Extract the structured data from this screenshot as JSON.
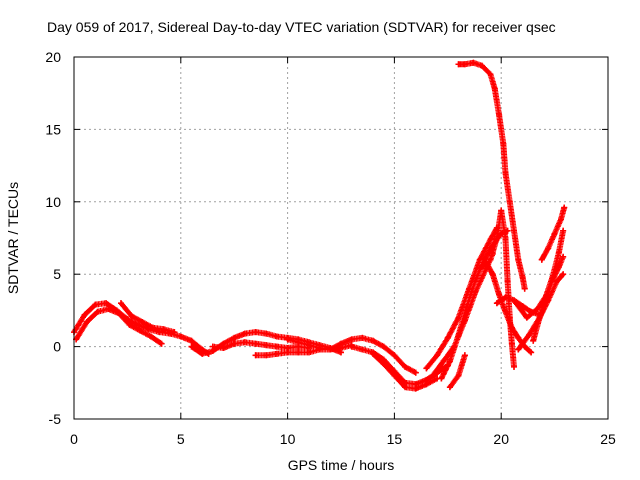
{
  "chart_data": {
    "type": "scatter",
    "title": "Day 059 of 2017, Sidereal Day-to-day VTEC variation (SDTVAR) for receiver qsec",
    "xlabel": "GPS time / hours",
    "ylabel": "SDTVAR / TECUs",
    "xlim": [
      0,
      25
    ],
    "ylim": [
      -5,
      20
    ],
    "xticks": [
      "0",
      "5",
      "10",
      "15",
      "20",
      "25"
    ],
    "yticks": [
      "-5",
      "0",
      "5",
      "10",
      "15",
      "20"
    ],
    "grid": true,
    "marker": "plus",
    "color": "#ff0000",
    "series": [
      {
        "name": "track-1",
        "points": [
          [
            0,
            1.0
          ],
          [
            0.5,
            2.2
          ],
          [
            1.0,
            2.9
          ],
          [
            1.5,
            3.0
          ],
          [
            2.0,
            2.5
          ],
          [
            2.5,
            1.9
          ],
          [
            3.0,
            1.5
          ],
          [
            3.5,
            1.2
          ],
          [
            4.0,
            1.0
          ],
          [
            4.5,
            0.9
          ],
          [
            5.0,
            0.7
          ],
          [
            5.5,
            0.4
          ],
          [
            6.0,
            -0.2
          ],
          [
            6.3,
            -0.5
          ]
        ]
      },
      {
        "name": "track-2",
        "points": [
          [
            0.1,
            0.5
          ],
          [
            0.6,
            1.7
          ],
          [
            1.1,
            2.4
          ],
          [
            1.6,
            2.6
          ],
          [
            2.1,
            2.3
          ],
          [
            2.6,
            1.5
          ],
          [
            3.1,
            1.1
          ],
          [
            3.6,
            0.7
          ],
          [
            4.1,
            0.2
          ]
        ]
      },
      {
        "name": "track-3",
        "points": [
          [
            2.2,
            3.0
          ],
          [
            2.7,
            2.1
          ],
          [
            3.2,
            1.7
          ],
          [
            3.7,
            1.3
          ],
          [
            4.2,
            1.2
          ],
          [
            4.7,
            1.0
          ]
        ]
      },
      {
        "name": "track-4",
        "points": [
          [
            5.5,
            0.0
          ],
          [
            6.0,
            -0.5
          ],
          [
            6.5,
            -0.3
          ],
          [
            7.0,
            0.2
          ],
          [
            7.5,
            0.6
          ],
          [
            8.0,
            0.9
          ],
          [
            8.5,
            1.0
          ],
          [
            9.0,
            0.9
          ],
          [
            9.5,
            0.7
          ],
          [
            10.0,
            0.6
          ],
          [
            10.5,
            0.5
          ],
          [
            11.0,
            0.3
          ],
          [
            11.5,
            0.1
          ],
          [
            12.0,
            -0.1
          ],
          [
            12.5,
            -0.4
          ]
        ]
      },
      {
        "name": "track-5",
        "points": [
          [
            6.5,
            0.0
          ],
          [
            7.0,
            -0.1
          ],
          [
            7.5,
            0.2
          ],
          [
            8.0,
            0.3
          ],
          [
            8.5,
            0.2
          ],
          [
            9.0,
            0.1
          ],
          [
            9.5,
            0.0
          ],
          [
            10.0,
            -0.1
          ],
          [
            10.5,
            0.0
          ],
          [
            11.0,
            -0.1
          ]
        ]
      },
      {
        "name": "track-6",
        "points": [
          [
            8.5,
            -0.6
          ],
          [
            9.0,
            -0.6
          ],
          [
            9.5,
            -0.5
          ],
          [
            10.0,
            -0.4
          ],
          [
            10.5,
            -0.4
          ],
          [
            11.0,
            -0.4
          ],
          [
            11.5,
            -0.2
          ],
          [
            12.0,
            -0.2
          ],
          [
            12.5,
            -0.1
          ],
          [
            13.0,
            0.1
          ]
        ]
      },
      {
        "name": "track-7",
        "points": [
          [
            10.0,
            0.5
          ],
          [
            10.5,
            0.3
          ],
          [
            11.0,
            0.1
          ],
          [
            11.5,
            -0.1
          ],
          [
            12.0,
            -0.2
          ],
          [
            12.5,
            0.2
          ],
          [
            13.0,
            0.5
          ],
          [
            13.5,
            0.6
          ],
          [
            14.0,
            0.4
          ],
          [
            14.5,
            0.0
          ],
          [
            15.0,
            -0.6
          ],
          [
            15.5,
            -1.4
          ],
          [
            16.0,
            -1.8
          ]
        ]
      },
      {
        "name": "track-8",
        "points": [
          [
            13.0,
            0.0
          ],
          [
            13.5,
            -0.2
          ],
          [
            14.0,
            -0.4
          ],
          [
            14.5,
            -0.9
          ],
          [
            15.0,
            -1.7
          ],
          [
            15.5,
            -2.5
          ],
          [
            16.0,
            -2.6
          ],
          [
            16.5,
            -2.3
          ],
          [
            17.0,
            -1.8
          ],
          [
            17.5,
            -1.3
          ]
        ]
      },
      {
        "name": "track-9",
        "points": [
          [
            14.0,
            -0.5
          ],
          [
            14.5,
            -1.2
          ],
          [
            15.0,
            -2.0
          ],
          [
            15.5,
            -2.8
          ],
          [
            16.0,
            -2.9
          ],
          [
            16.5,
            -2.6
          ],
          [
            17.0,
            -2.2
          ]
        ]
      },
      {
        "name": "track-10",
        "points": [
          [
            16.5,
            -1.5
          ],
          [
            17.0,
            -0.6
          ],
          [
            17.5,
            0.6
          ],
          [
            18.0,
            2.0
          ],
          [
            18.5,
            4.0
          ],
          [
            19.0,
            6.0
          ],
          [
            19.5,
            7.4
          ],
          [
            19.8,
            8.2
          ]
        ]
      },
      {
        "name": "track-11",
        "points": [
          [
            16.8,
            -2.0
          ],
          [
            17.3,
            -1.0
          ],
          [
            17.8,
            0.0
          ],
          [
            18.3,
            1.8
          ],
          [
            18.8,
            3.8
          ],
          [
            19.3,
            5.4
          ],
          [
            19.6,
            6.4
          ]
        ]
      },
      {
        "name": "track-12",
        "points": [
          [
            17.2,
            -2.2
          ],
          [
            17.6,
            -1.0
          ],
          [
            18.0,
            0.8
          ],
          [
            18.4,
            2.8
          ],
          [
            18.8,
            4.6
          ],
          [
            19.2,
            6.0
          ],
          [
            19.6,
            7.0
          ],
          [
            20.0,
            7.8
          ],
          [
            20.3,
            8.0
          ]
        ]
      },
      {
        "name": "track-13",
        "points": [
          [
            17.6,
            -2.8
          ],
          [
            18.0,
            -2.0
          ],
          [
            18.3,
            -0.6
          ]
        ]
      },
      {
        "name": "track-14",
        "points": [
          [
            18.0,
            19.5
          ],
          [
            18.3,
            19.5
          ],
          [
            18.7,
            19.6
          ],
          [
            19.1,
            19.4
          ],
          [
            19.5,
            18.8
          ],
          [
            19.7,
            17.8
          ],
          [
            19.9,
            16.0
          ],
          [
            20.1,
            14.0
          ],
          [
            20.2,
            12.0
          ],
          [
            20.4,
            10.0
          ],
          [
            20.6,
            8.0
          ],
          [
            20.8,
            6.0
          ],
          [
            21.0,
            4.8
          ],
          [
            21.1,
            4.0
          ]
        ]
      },
      {
        "name": "track-15",
        "points": [
          [
            19.0,
            5.4
          ],
          [
            19.3,
            5.8
          ],
          [
            19.6,
            5.0
          ],
          [
            19.9,
            3.6
          ],
          [
            20.2,
            2.4
          ],
          [
            20.5,
            1.3
          ],
          [
            20.8,
            0.6
          ],
          [
            21.1,
            0.0
          ],
          [
            21.4,
            -0.4
          ]
        ]
      },
      {
        "name": "track-16",
        "points": [
          [
            19.5,
            6.0
          ],
          [
            19.8,
            7.5
          ],
          [
            20.0,
            9.4
          ],
          [
            20.2,
            7.5
          ],
          [
            20.3,
            4.5
          ],
          [
            20.4,
            2.0
          ],
          [
            20.5,
            0.2
          ],
          [
            20.6,
            -1.4
          ]
        ]
      },
      {
        "name": "track-17",
        "points": [
          [
            19.8,
            3.0
          ],
          [
            20.2,
            3.4
          ],
          [
            20.6,
            3.2
          ],
          [
            21.0,
            2.8
          ],
          [
            21.4,
            2.4
          ],
          [
            21.8,
            2.2
          ]
        ]
      },
      {
        "name": "track-18",
        "points": [
          [
            20.7,
            3.0
          ],
          [
            21.2,
            2.0
          ],
          [
            21.7,
            2.6
          ],
          [
            22.1,
            3.5
          ],
          [
            22.4,
            4.8
          ],
          [
            22.7,
            6.5
          ],
          [
            22.9,
            8.0
          ]
        ]
      },
      {
        "name": "track-19",
        "points": [
          [
            21.5,
            0.4
          ],
          [
            21.8,
            2.0
          ],
          [
            22.1,
            3.2
          ],
          [
            22.4,
            4.6
          ],
          [
            22.7,
            5.5
          ],
          [
            22.9,
            6.2
          ]
        ]
      },
      {
        "name": "track-20",
        "points": [
          [
            21.9,
            6.0
          ],
          [
            22.2,
            6.8
          ],
          [
            22.5,
            7.8
          ],
          [
            22.8,
            8.8
          ],
          [
            22.95,
            9.6
          ]
        ]
      },
      {
        "name": "track-21",
        "points": [
          [
            20.8,
            -0.2
          ],
          [
            21.3,
            0.8
          ],
          [
            21.8,
            2.0
          ],
          [
            22.2,
            3.2
          ],
          [
            22.6,
            4.5
          ],
          [
            22.9,
            5.0
          ]
        ]
      }
    ]
  }
}
